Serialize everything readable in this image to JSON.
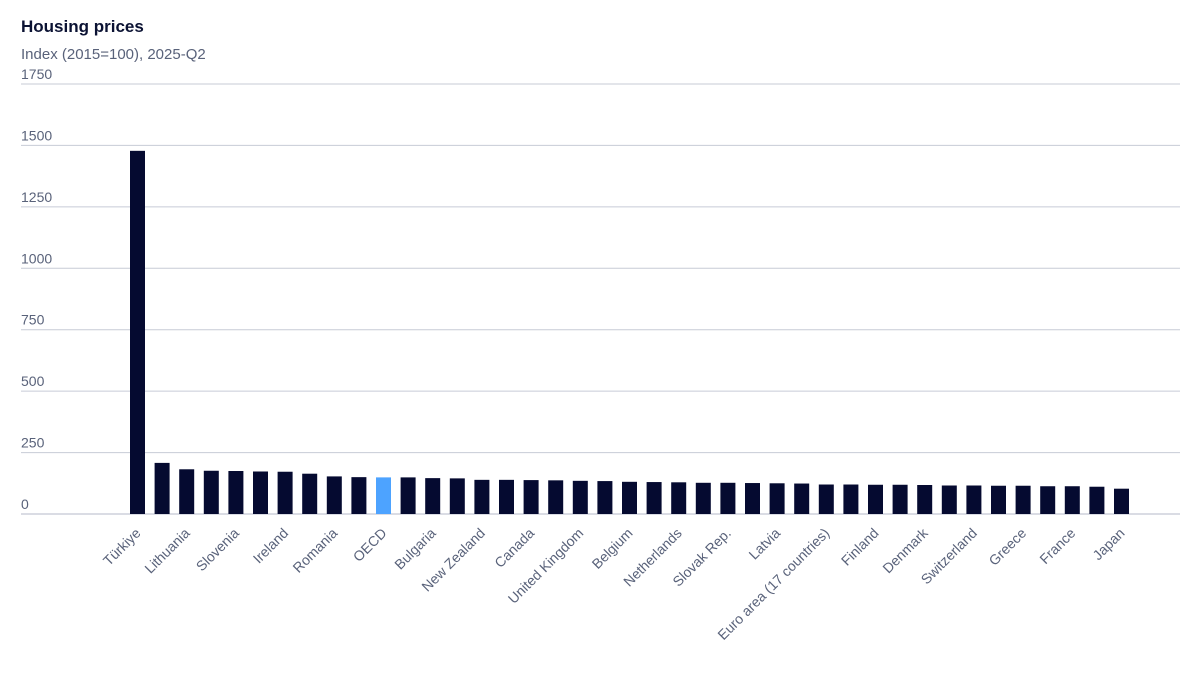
{
  "chart_data": {
    "type": "bar",
    "title": "Housing prices",
    "subtitle": "Index (2015=100), 2025-Q2",
    "ylim": [
      0,
      1750
    ],
    "yticks": [
      0,
      250,
      500,
      750,
      1000,
      1250,
      1500,
      1750
    ],
    "grid": true,
    "categories": [
      "Türkiye",
      "",
      "Lithuania",
      "",
      "Slovenia",
      "",
      "Ireland",
      "",
      "Romania",
      "",
      "OECD",
      "",
      "Bulgaria",
      "",
      "New Zealand",
      "",
      "Canada",
      "",
      "United Kingdom",
      "",
      "Belgium",
      "",
      "Netherlands",
      "",
      "Slovak Rep.",
      "",
      "Latvia",
      "",
      "Euro area (17 countries)",
      "",
      "Finland",
      "",
      "Denmark",
      "",
      "Switzerland",
      "",
      "Greece",
      "",
      "France",
      "",
      "Japan"
    ],
    "values": [
      1478,
      208,
      182,
      176,
      175,
      173,
      172,
      164,
      153,
      150,
      149,
      149,
      146,
      145,
      139,
      139,
      138,
      137,
      135,
      134,
      131,
      130,
      129,
      127,
      127,
      126,
      125,
      124,
      120,
      120,
      119,
      119,
      118,
      116,
      116,
      115,
      115,
      113,
      113,
      111,
      103
    ],
    "highlight": "OECD",
    "colors": {
      "bar": "#050a30",
      "highlight": "#4da3ff",
      "grid": "#c7cbd6",
      "axis": "#b5bac8",
      "text": "#59627a",
      "title": "#0b1233"
    }
  }
}
